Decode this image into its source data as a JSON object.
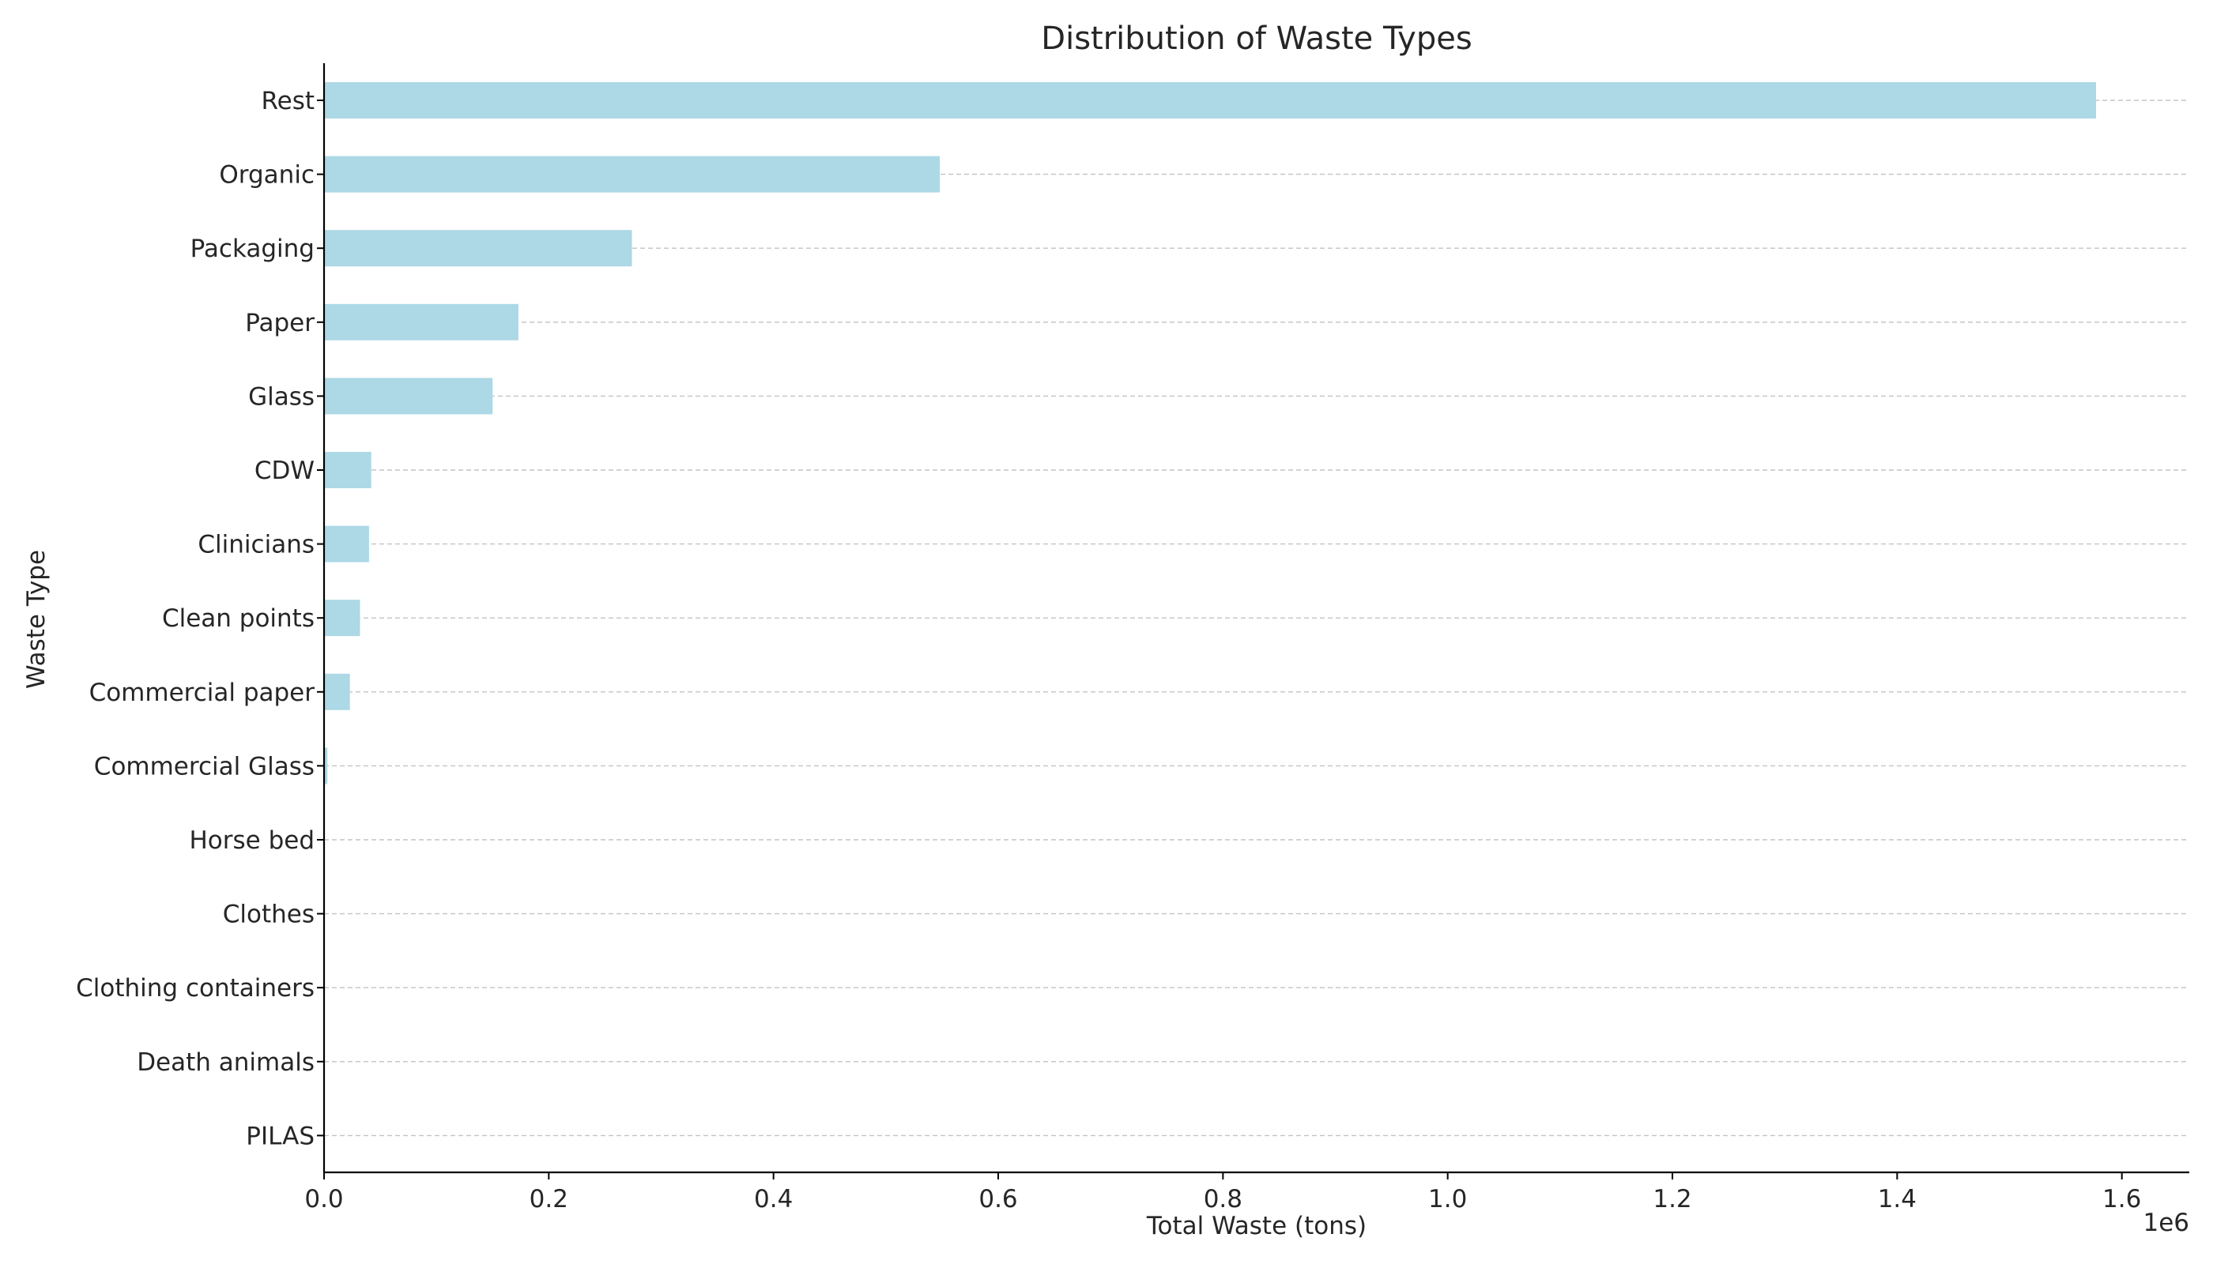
{
  "chart_data": {
    "type": "bar",
    "orientation": "horizontal",
    "title": "Distribution of Waste Types",
    "xlabel": "Total Waste (tons)",
    "ylabel": "Waste Type",
    "x_offset_label": "1e6",
    "categories": [
      "Rest",
      "Organic",
      "Packaging",
      "Paper",
      "Glass",
      "CDW",
      "Clinicians",
      "Clean points",
      "Commercial paper",
      "Commercial Glass",
      "Horse bed",
      "Clothes",
      "Clothing containers",
      "Death animals",
      "PILAS"
    ],
    "values": [
      1577000,
      548000,
      274000,
      173000,
      150000,
      42000,
      40000,
      32000,
      23000,
      3000,
      0,
      0,
      0,
      0,
      0
    ],
    "xlim": [
      0,
      1660000
    ],
    "xticks": [
      0,
      200000,
      400000,
      600000,
      800000,
      1000000,
      1200000,
      1400000,
      1600000
    ],
    "xtick_labels": [
      "0.0",
      "0.2",
      "0.4",
      "0.6",
      "0.8",
      "1.0",
      "1.2",
      "1.4",
      "1.6"
    ],
    "grid": "horizontal dashed",
    "bar_color": "#add8e6"
  }
}
